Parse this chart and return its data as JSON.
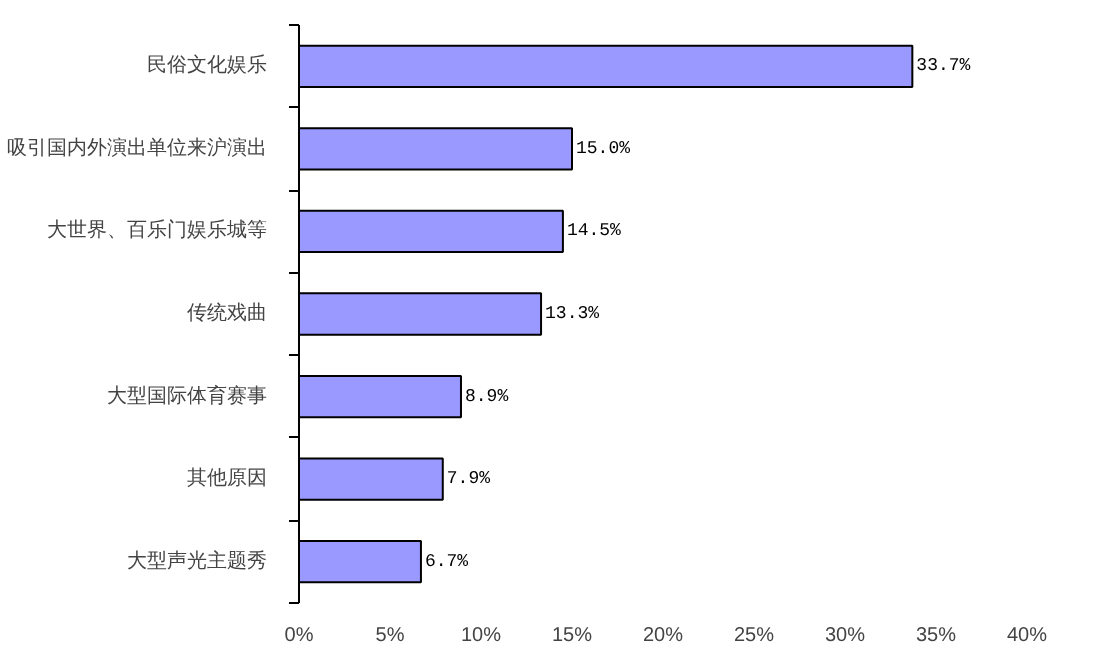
{
  "chart_data": {
    "type": "bar",
    "orientation": "horizontal",
    "categories": [
      "民俗文化娱乐",
      "吸引国内外演出单位来沪演出",
      "大世界、百乐门娱乐城等",
      "传统戏曲",
      "大型国际体育赛事",
      "其他原因",
      "大型声光主题秀"
    ],
    "values": [
      33.7,
      15.0,
      14.5,
      13.3,
      8.9,
      7.9,
      6.7
    ],
    "value_labels": [
      "33.7%",
      "15.0%",
      "14.5%",
      "13.3%",
      "8.9%",
      "7.9%",
      "6.7%"
    ],
    "color": "#9999ff",
    "xlim": [
      0,
      40
    ],
    "xticks": [
      {
        "value": 0,
        "label": "0%"
      },
      {
        "value": 5,
        "label": "5%"
      },
      {
        "value": 10,
        "label": "10%"
      },
      {
        "value": 15,
        "label": "15%"
      },
      {
        "value": 20,
        "label": "20%"
      },
      {
        "value": 25,
        "label": "25%"
      },
      {
        "value": 30,
        "label": "30%"
      },
      {
        "value": 35,
        "label": "35%"
      },
      {
        "value": 40,
        "label": "40%"
      }
    ],
    "grid": false
  }
}
